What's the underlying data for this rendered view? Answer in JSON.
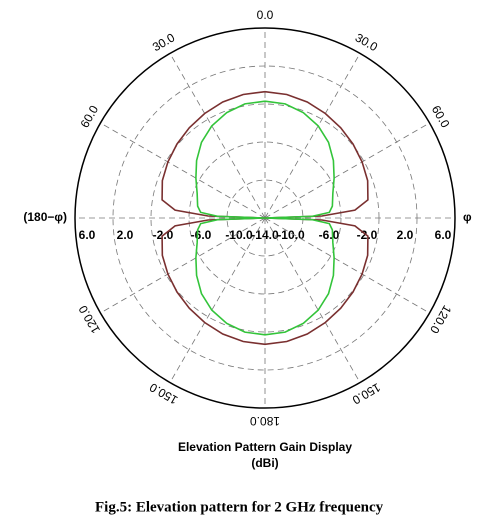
{
  "chart_data": {
    "type": "polar",
    "title": "Elevation Pattern Gain Display",
    "subtitle": "(dBi)",
    "caption": "Fig.5: Elevation pattern for 2 GHz frequency",
    "rlim": [
      -14,
      6
    ],
    "rticks": [
      {
        "value": -14,
        "label": "-14.0"
      },
      {
        "value": -10,
        "label": "-10.0"
      },
      {
        "value": -6,
        "label": "-6.0"
      },
      {
        "value": -2,
        "label": "-2.0"
      },
      {
        "value": 2,
        "label": "2.0"
      },
      {
        "value": 6,
        "label": "6.0"
      }
    ],
    "angleticks": [
      {
        "value": 0,
        "label": "0.0"
      },
      {
        "value": 30,
        "label": "30.0"
      },
      {
        "value": 60,
        "label": "60.0"
      },
      {
        "value": 90,
        "label": "φ"
      },
      {
        "value": 120,
        "label": "120.0"
      },
      {
        "value": 150,
        "label": "150.0"
      },
      {
        "value": 180,
        "label": "180.0"
      },
      {
        "value": 210,
        "label": "150.0"
      },
      {
        "value": 240,
        "label": "120.0"
      },
      {
        "value": 270,
        "label": "(180−φ)"
      },
      {
        "value": 300,
        "label": "60.0"
      },
      {
        "value": 330,
        "label": "30.0"
      }
    ],
    "x": [
      0,
      10,
      20,
      30,
      40,
      50,
      60,
      70,
      80,
      85,
      88,
      90,
      92,
      95,
      100,
      110,
      120,
      130,
      140,
      150,
      160,
      170,
      180,
      190,
      200,
      210,
      220,
      230,
      240,
      250,
      260,
      265,
      268,
      270,
      272,
      275,
      280,
      290,
      300,
      310,
      320,
      330,
      340,
      350,
      360
    ],
    "series": [
      {
        "color": "#7a3030",
        "values": [
          -0.7,
          -0.8,
          -1.0,
          -1.3,
          -1.6,
          -1.9,
          -2.2,
          -2.5,
          -3.0,
          -4.5,
          -8,
          -14,
          -8,
          -4.5,
          -3.0,
          -2.5,
          -2.2,
          -1.9,
          -1.6,
          -1.3,
          -1.0,
          -0.8,
          -0.7,
          -0.8,
          -1.0,
          -1.3,
          -1.6,
          -1.9,
          -2.2,
          -2.5,
          -3.0,
          -4.5,
          -8,
          -14,
          -8,
          -4.5,
          -3.0,
          -2.5,
          -2.2,
          -1.9,
          -1.6,
          -1.3,
          -1.0,
          -0.8,
          -0.7
        ]
      },
      {
        "color": "#33c43a",
        "values": [
          -1.7,
          -1.8,
          -2.2,
          -2.8,
          -3.6,
          -4.6,
          -5.6,
          -6.4,
          -6.8,
          -7.2,
          -9,
          -14,
          -9,
          -7.2,
          -6.8,
          -6.4,
          -5.6,
          -4.6,
          -3.6,
          -2.8,
          -2.2,
          -1.8,
          -1.7,
          -1.8,
          -2.2,
          -2.8,
          -3.6,
          -4.6,
          -5.6,
          -6.4,
          -6.8,
          -7.2,
          -9,
          -14,
          -9,
          -7.2,
          -6.8,
          -6.4,
          -5.6,
          -4.6,
          -3.6,
          -2.8,
          -2.2,
          -1.8,
          -1.7
        ]
      }
    ]
  }
}
